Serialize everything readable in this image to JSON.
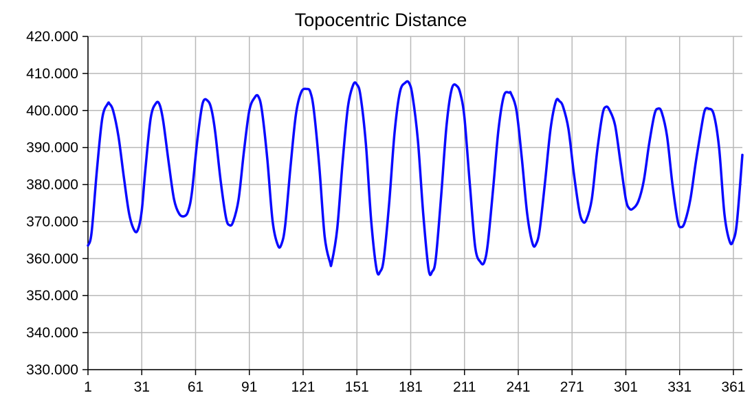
{
  "chart_data": {
    "type": "line",
    "title": "Topocentric Distance",
    "xlabel": "",
    "ylabel": "",
    "xlim": [
      1,
      366
    ],
    "ylim": [
      330,
      420
    ],
    "grid": true,
    "legend": "none",
    "xticks": [
      1,
      31,
      61,
      91,
      121,
      151,
      181,
      211,
      241,
      271,
      301,
      331,
      361
    ],
    "xtick_labels": [
      "1",
      "31",
      "61",
      "91",
      "121",
      "151",
      "181",
      "211",
      "241",
      "271",
      "301",
      "331",
      "361"
    ],
    "yticks": [
      330,
      340,
      350,
      360,
      370,
      380,
      390,
      400,
      410,
      420
    ],
    "ytick_labels": [
      "330.000",
      "340.000",
      "350.000",
      "360.000",
      "370.000",
      "380.000",
      "390.000",
      "400.000",
      "410.000",
      "420.000"
    ],
    "series": [
      {
        "color": "#0a0aff",
        "x": [
          1,
          3,
          6,
          9,
          12,
          13,
          15,
          18,
          21,
          24,
          27,
          29,
          31,
          33,
          36,
          39,
          41,
          43,
          46,
          49,
          52,
          55,
          57,
          59,
          62,
          65,
          68,
          70,
          72,
          75,
          78,
          80,
          82,
          85,
          88,
          91,
          94,
          96,
          98,
          101,
          104,
          107,
          109,
          111,
          114,
          117,
          120,
          123,
          125,
          127,
          130,
          133,
          136,
          137,
          140,
          143,
          146,
          149,
          151,
          153,
          156,
          159,
          162,
          164,
          166,
          169,
          172,
          175,
          178,
          180,
          182,
          185,
          188,
          191,
          193,
          195,
          198,
          201,
          204,
          207,
          209,
          211,
          214,
          217,
          220,
          222,
          224,
          227,
          230,
          233,
          236,
          237,
          240,
          243,
          246,
          249,
          251,
          253,
          256,
          259,
          262,
          264,
          266,
          269,
          272,
          275,
          277,
          279,
          282,
          285,
          288,
          290,
          292,
          295,
          298,
          301,
          303,
          305,
          308,
          311,
          314,
          317,
          319,
          321,
          324,
          327,
          330,
          332,
          334,
          337,
          340,
          343,
          345,
          347,
          350,
          353,
          356,
          359,
          361,
          363,
          366
        ],
        "values": [
          363.5,
          367,
          384,
          398,
          401.8,
          401.8,
          400,
          393,
          382,
          372,
          367.5,
          368,
          373,
          384,
          398,
          402,
          401.5,
          397,
          386,
          376,
          372,
          371.5,
          373,
          378,
          392,
          402,
          402.5,
          400,
          394,
          381,
          371,
          369,
          370,
          376,
          389,
          400,
          403.5,
          403.8,
          400,
          387,
          370,
          363.5,
          364,
          369,
          385,
          399,
          405,
          405.8,
          405,
          400,
          385,
          366,
          359,
          359,
          368,
          386,
          401,
          407,
          407,
          404,
          391,
          370,
          357,
          356.5,
          360,
          375,
          394,
          405,
          407.5,
          407.5,
          404,
          392,
          372,
          357,
          356.5,
          360,
          377,
          396,
          406,
          406.5,
          404,
          398,
          380,
          363,
          359,
          359,
          364,
          379,
          395,
          404,
          404.8,
          404.5,
          400,
          387,
          372,
          364,
          364,
          368,
          381,
          395,
          402.5,
          402.5,
          401,
          395,
          383,
          373,
          370,
          370.5,
          376,
          389,
          399,
          401,
          400,
          396,
          386,
          376,
          373.5,
          373.5,
          375.5,
          381,
          391,
          399,
          400.5,
          399.5,
          393,
          380,
          370,
          368.5,
          370,
          376,
          386,
          395,
          400,
          400.5,
          399,
          390,
          372,
          364.5,
          365,
          370,
          388
        ]
      }
    ]
  }
}
